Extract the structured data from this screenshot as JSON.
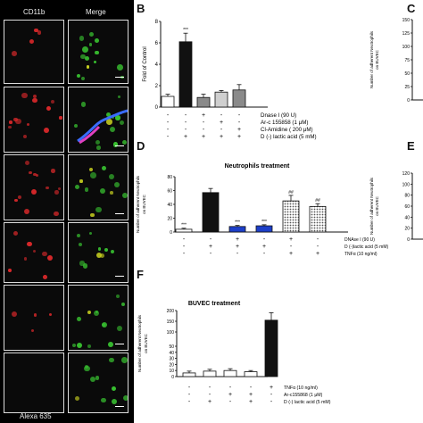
{
  "panels": {
    "micro": {
      "header_left": "CD11b",
      "header_right": "Merge",
      "footer_left": "Alexa 635"
    },
    "B": {
      "letter": "B"
    },
    "C": {
      "letter": "C"
    },
    "D": {
      "letter": "D"
    },
    "E": {
      "letter": "E"
    },
    "F": {
      "letter": "F"
    }
  },
  "colors": {
    "red_cell": "#d8282a",
    "green_cell": "#38c030",
    "blue_cell": "#2d5fe0",
    "trace_blue": "#3a6cff",
    "trace_magenta": "#e040c0"
  },
  "chart_data": [
    {
      "panel": "B",
      "type": "bar",
      "ylabel": "Fold of Control",
      "ylim": [
        0,
        8
      ],
      "yticks": [
        "0",
        "2",
        "4",
        "6",
        "8"
      ],
      "values": [
        1.0,
        6.1,
        0.9,
        1.4,
        1.6
      ],
      "errors": [
        0.2,
        0.8,
        0.3,
        0.15,
        0.5
      ],
      "fills": [
        "#ffffff",
        "#111111",
        "#8a8a8a",
        "#cfcfcf",
        "#8a8a8a"
      ],
      "sig": [
        "",
        "***",
        "",
        "",
        ""
      ],
      "conditions": [
        {
          "name": "Dnase I (90 U)",
          "signs": [
            "-",
            "-",
            "+",
            "-",
            "-"
          ]
        },
        {
          "name": "Ar-c 155858 (1 μM)",
          "signs": [
            "-",
            "-",
            "-",
            "+",
            "-"
          ]
        },
        {
          "name": "Cl-Amidine ( 200 μM)",
          "signs": [
            "-",
            "-",
            "-",
            "-",
            "+"
          ]
        },
        {
          "name": "D (-) lactic acid (5 mM)",
          "signs": [
            "-",
            "+",
            "+",
            "+",
            "+"
          ]
        }
      ]
    },
    {
      "panel": "C",
      "type": "bar",
      "ylabel": "Number of adherent Neutrophils on BUVEC",
      "yticks": [
        "0",
        "25",
        "50",
        "75",
        "100",
        "125",
        "150"
      ],
      "ylim": [
        0,
        150
      ]
    },
    {
      "panel": "D",
      "type": "bar",
      "title": "Neutrophils treatment",
      "ylabel": "Number of adherent Neutrophils on BUVEC",
      "ylim": [
        0,
        80
      ],
      "yticks": [
        "0",
        "20",
        "40",
        "60",
        "80"
      ],
      "values": [
        4,
        57,
        8,
        9,
        45,
        37
      ],
      "errors": [
        1.5,
        6,
        1.5,
        1.5,
        8,
        4
      ],
      "fills": [
        "#ffffff",
        "#111111",
        "#1d3fc8",
        "#1d3fc8",
        "hatch",
        "hatch"
      ],
      "sig": [
        "***",
        "",
        "***",
        "***",
        "##",
        "##"
      ],
      "conditions": [
        {
          "name": "DNAse I (90 U)",
          "signs": [
            "-",
            "-",
            "+",
            "-",
            "+",
            "-"
          ]
        },
        {
          "name": "D (-)lactic acid (5 mM)",
          "signs": [
            "-",
            "+",
            "+",
            "+",
            "-",
            "-"
          ]
        },
        {
          "name": "TNFα (10 ng/ml)",
          "signs": [
            "-",
            "-",
            "-",
            "-",
            "+",
            "+"
          ]
        }
      ]
    },
    {
      "panel": "E",
      "type": "bar",
      "ylabel": "Number of adherent Neutrophils on BUVEC",
      "yticks": [
        "0",
        "20",
        "40",
        "60",
        "80",
        "100",
        "120"
      ],
      "ylim": [
        0,
        120
      ]
    },
    {
      "panel": "F",
      "type": "bar",
      "title": "BUVEC treatment",
      "ylabel": "Number of adherent Neutrophils on BUVEC",
      "ylim": [
        0,
        200
      ],
      "yticks": [
        "0",
        "10",
        "20",
        "30",
        "40",
        "50",
        "100",
        "150",
        "200"
      ],
      "values": [
        6,
        9,
        10,
        8,
        155
      ],
      "errors": [
        3,
        3,
        3,
        2,
        35
      ],
      "fills": [
        "#ffffff",
        "#ffffff",
        "#ffffff",
        "#ffffff",
        "#111111"
      ],
      "conditions": [
        {
          "name": "TNFα (10 ng/ml)",
          "signs": [
            "-",
            "-",
            "-",
            "-",
            "+"
          ]
        },
        {
          "name": "Ar-c155868 (1 μM)",
          "signs": [
            "-",
            "-",
            "+",
            "+",
            "-"
          ]
        },
        {
          "name": "D (-) lactic acid (5 mM)",
          "signs": [
            "-",
            "+",
            "-",
            "+",
            "-"
          ]
        }
      ]
    }
  ]
}
